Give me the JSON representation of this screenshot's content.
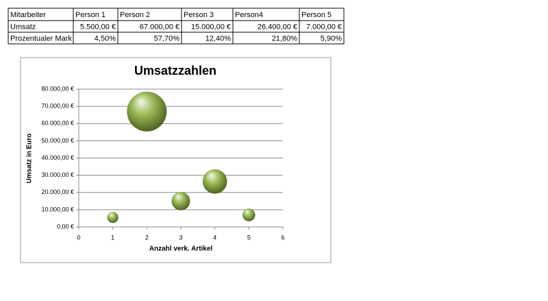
{
  "table": {
    "rows": [
      [
        "Mitarbeiter",
        "Person 1",
        "Person 2",
        "Person 3",
        "Person4",
        "Person 5"
      ],
      [
        "Umsatz",
        "5.500,00 €",
        "67.000,00 €",
        "15.000,00 €",
        "26.400,00 €",
        "7.000,00 €"
      ],
      [
        "Prozentualer Mark",
        "4,50%",
        "57,70%",
        "12,40%",
        "21,80%",
        "5,90%"
      ]
    ]
  },
  "chart_data": {
    "type": "bubble",
    "title": "Umsatzzahlen",
    "x_label": "Anzahl verk. Artikel",
    "y_label": "Umsatz in Euro",
    "x": [
      1,
      2,
      3,
      4,
      5
    ],
    "values": [
      5500,
      67000,
      15000,
      26400,
      7000
    ],
    "sizes": [
      4.5,
      57.7,
      12.4,
      21.8,
      5.9
    ],
    "color": "#9bbb59",
    "xlim": [
      0,
      6
    ],
    "xticks": [
      0,
      1,
      2,
      3,
      4,
      5,
      6
    ],
    "ylim": [
      0,
      80000
    ],
    "yticks": [
      {
        "value": 0,
        "label": "0,00 €"
      },
      {
        "value": 10000,
        "label": "10.000,00 €"
      },
      {
        "value": 20000,
        "label": "20.000,00 €"
      },
      {
        "value": 30000,
        "label": "30.000,00 €"
      },
      {
        "value": 40000,
        "label": "40.000,00 €"
      },
      {
        "value": 50000,
        "label": "50.000,00 €"
      },
      {
        "value": 60000,
        "label": "60.000,00 €"
      },
      {
        "value": 70000,
        "label": "70.000,00 €"
      },
      {
        "value": 80000,
        "label": "80.000,00 €"
      }
    ],
    "grid": true
  }
}
